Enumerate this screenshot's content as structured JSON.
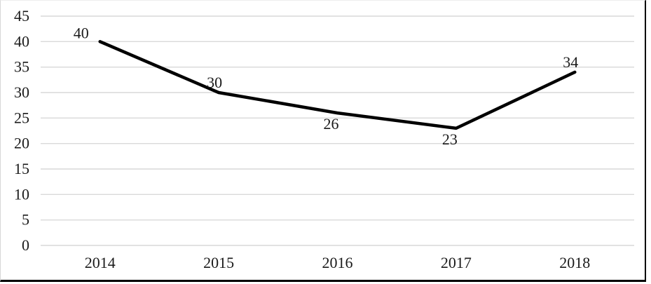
{
  "figure": {
    "title": "",
    "background_color": "#ffffff",
    "border_color": "#000000"
  },
  "chart_data": {
    "type": "line",
    "categories": [
      "2014",
      "2015",
      "2016",
      "2017",
      "2018"
    ],
    "series": [
      {
        "name": "values",
        "values": [
          40,
          30,
          26,
          23,
          34
        ]
      }
    ],
    "data_labels": [
      "40",
      "30",
      "26",
      "23",
      "34"
    ],
    "data_label_positions": [
      "above-left",
      "above",
      "below",
      "below",
      "above"
    ],
    "title": "",
    "xlabel": "",
    "ylabel": "",
    "ylim": [
      0,
      45
    ],
    "yticks": [
      0,
      5,
      10,
      15,
      20,
      25,
      30,
      35,
      40,
      45
    ],
    "ytick_labels": [
      "0",
      "5",
      "10",
      "15",
      "20",
      "25",
      "30",
      "35",
      "40",
      "45"
    ],
    "grid": "horizontal",
    "gridline_color": "#d9d9d9",
    "line_color": "#000000",
    "legend_position": "none"
  }
}
